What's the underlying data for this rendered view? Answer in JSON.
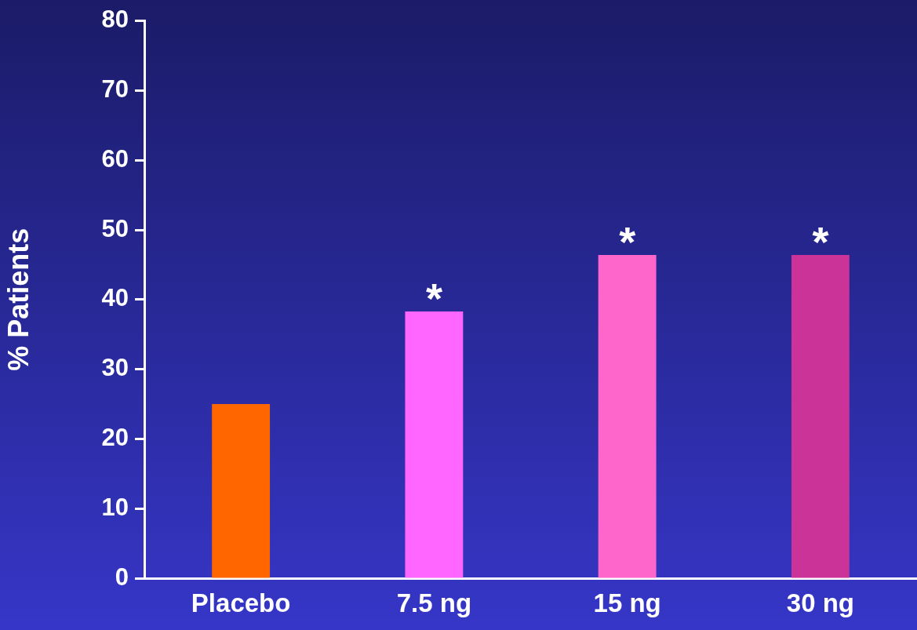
{
  "chart_data": {
    "type": "bar",
    "ylabel": "% Patients",
    "categories": [
      "Placebo",
      "7.5 ng",
      "15 ng",
      "30 ng"
    ],
    "values": [
      25,
      38.3,
      46.4,
      46.4
    ],
    "colors": [
      "#ff6600",
      "#ff66ff",
      "#ff66cc",
      "#cc3399"
    ],
    "ylim": [
      0,
      80
    ],
    "yticks": [
      0,
      10,
      20,
      30,
      40,
      50,
      60,
      70,
      80
    ],
    "grid": false,
    "legend": false,
    "annotations": [
      {
        "text": "*",
        "x": "7.5 ng",
        "y": 38.3
      },
      {
        "text": "*",
        "x": "15 ng",
        "y": 46.4
      },
      {
        "text": "*",
        "x": "30 ng",
        "y": 46.4
      }
    ]
  }
}
